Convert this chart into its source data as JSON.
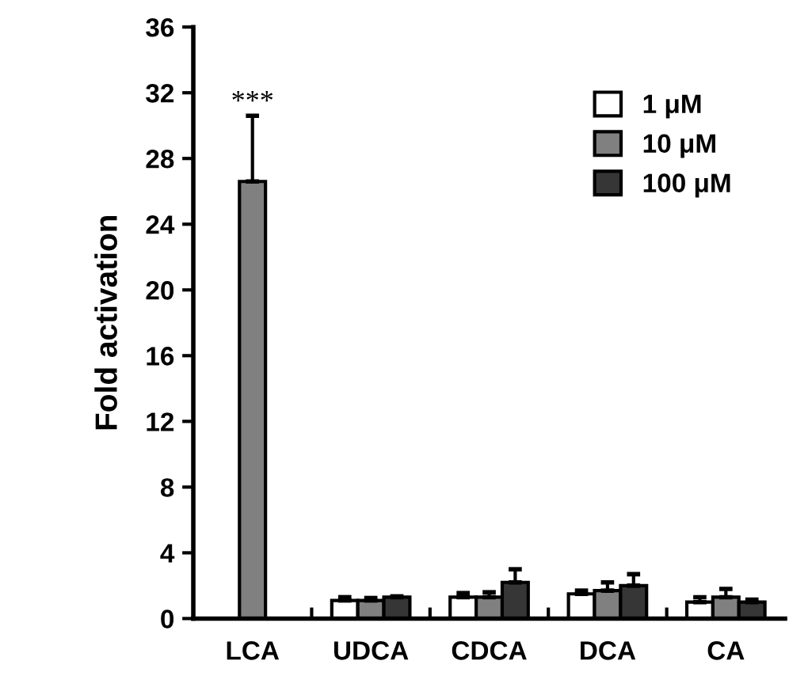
{
  "chart_data": {
    "type": "bar",
    "ylabel": "Fold activation",
    "categories": [
      "LCA",
      "UDCA",
      "CDCA",
      "DCA",
      "CA"
    ],
    "series": [
      {
        "name": "1 μM",
        "color": "#ffffff",
        "values": [
          null,
          1.1,
          1.3,
          1.5,
          1.0
        ],
        "errors": [
          null,
          0.2,
          0.25,
          0.2,
          0.3
        ]
      },
      {
        "name": "10 μM",
        "color": "#808080",
        "values": [
          26.6,
          1.1,
          1.3,
          1.7,
          1.3
        ],
        "errors": [
          4.0,
          0.15,
          0.3,
          0.5,
          0.5
        ]
      },
      {
        "name": "100 μM",
        "color": "#363636",
        "values": [
          null,
          1.3,
          2.2,
          2.0,
          1.0
        ],
        "errors": [
          null,
          0.05,
          0.8,
          0.7,
          0.15
        ]
      }
    ],
    "annotations": [
      {
        "text": "***",
        "x": "LCA",
        "y": 30.6
      }
    ],
    "ylim": [
      0,
      36
    ],
    "yticks": [
      0,
      4,
      8,
      12,
      16,
      20,
      24,
      28,
      32,
      36
    ],
    "grid": false,
    "legend": "top right"
  }
}
